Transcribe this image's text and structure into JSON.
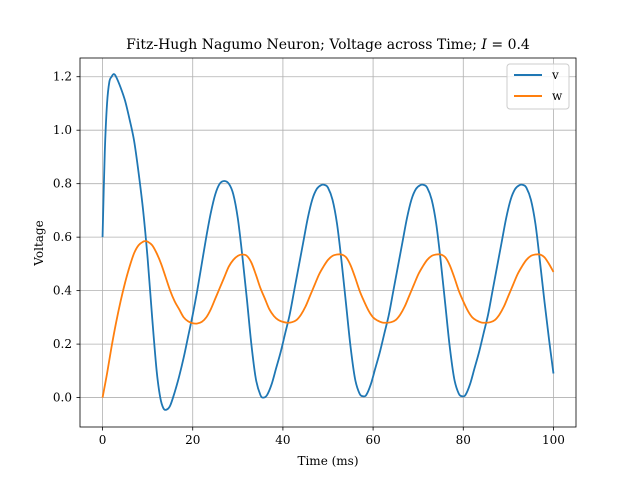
{
  "chart_data": {
    "type": "line",
    "title_prefix": "Fitz-Hugh Nagumo Neuron; Voltage across Time; ",
    "title_italic": "I",
    "title_suffix": " = 0.4",
    "xlabel": "Time (ms)",
    "ylabel": "Voltage",
    "xlim": [
      -5,
      105
    ],
    "ylim": [
      -0.11,
      1.27
    ],
    "xticks": [
      0,
      20,
      40,
      60,
      80,
      100
    ],
    "xtick_labels": [
      "0",
      "20",
      "40",
      "60",
      "80",
      "100"
    ],
    "yticks": [
      0.0,
      0.2,
      0.4,
      0.6,
      0.8,
      1.0,
      1.2
    ],
    "ytick_labels": [
      "0.0",
      "0.2",
      "0.4",
      "0.6",
      "0.8",
      "1.0",
      "1.2"
    ],
    "grid": true,
    "legend_position": "top-right",
    "series": [
      {
        "name": "v",
        "color": "#1f77b4",
        "points": [
          [
            0.0,
            0.6
          ],
          [
            0.5,
            0.92
          ],
          [
            1.0,
            1.1
          ],
          [
            1.5,
            1.18
          ],
          [
            2.0,
            1.2
          ],
          [
            2.5,
            1.21
          ],
          [
            3.0,
            1.2
          ],
          [
            4.0,
            1.16
          ],
          [
            5.0,
            1.11
          ],
          [
            6.0,
            1.04
          ],
          [
            7.0,
            0.96
          ],
          [
            8.0,
            0.84
          ],
          [
            9.0,
            0.7
          ],
          [
            10.0,
            0.52
          ],
          [
            11.0,
            0.3
          ],
          [
            12.0,
            0.1
          ],
          [
            12.8,
            0.0
          ],
          [
            13.5,
            -0.04
          ],
          [
            14.2,
            -0.045
          ],
          [
            15.0,
            -0.03
          ],
          [
            16.0,
            0.02
          ],
          [
            17.0,
            0.08
          ],
          [
            18.0,
            0.15
          ],
          [
            19.0,
            0.23
          ],
          [
            20.0,
            0.31
          ],
          [
            21.0,
            0.4
          ],
          [
            22.0,
            0.5
          ],
          [
            23.0,
            0.6
          ],
          [
            24.0,
            0.69
          ],
          [
            25.0,
            0.76
          ],
          [
            26.0,
            0.8
          ],
          [
            27.0,
            0.81
          ],
          [
            28.0,
            0.8
          ],
          [
            29.0,
            0.76
          ],
          [
            30.0,
            0.67
          ],
          [
            31.0,
            0.53
          ],
          [
            32.0,
            0.37
          ],
          [
            33.0,
            0.2
          ],
          [
            34.0,
            0.07
          ],
          [
            35.0,
            0.01
          ],
          [
            35.7,
            0.0
          ],
          [
            36.5,
            0.01
          ],
          [
            37.5,
            0.05
          ],
          [
            38.5,
            0.11
          ],
          [
            39.5,
            0.17
          ],
          [
            40.5,
            0.24
          ],
          [
            41.5,
            0.31
          ],
          [
            42.5,
            0.4
          ],
          [
            43.5,
            0.49
          ],
          [
            44.5,
            0.58
          ],
          [
            45.5,
            0.67
          ],
          [
            46.5,
            0.74
          ],
          [
            47.5,
            0.78
          ],
          [
            48.5,
            0.795
          ],
          [
            49.3,
            0.795
          ],
          [
            50.0,
            0.785
          ],
          [
            51.0,
            0.74
          ],
          [
            52.0,
            0.65
          ],
          [
            53.0,
            0.51
          ],
          [
            54.0,
            0.35
          ],
          [
            55.0,
            0.19
          ],
          [
            56.0,
            0.07
          ],
          [
            57.0,
            0.015
          ],
          [
            57.8,
            0.005
          ],
          [
            58.5,
            0.01
          ],
          [
            59.5,
            0.05
          ],
          [
            60.5,
            0.11
          ],
          [
            61.5,
            0.17
          ],
          [
            62.5,
            0.24
          ],
          [
            63.5,
            0.31
          ],
          [
            64.5,
            0.4
          ],
          [
            65.5,
            0.49
          ],
          [
            66.5,
            0.58
          ],
          [
            67.5,
            0.67
          ],
          [
            68.5,
            0.74
          ],
          [
            69.5,
            0.78
          ],
          [
            70.5,
            0.795
          ],
          [
            71.3,
            0.795
          ],
          [
            72.0,
            0.785
          ],
          [
            73.0,
            0.74
          ],
          [
            74.0,
            0.65
          ],
          [
            75.0,
            0.51
          ],
          [
            76.0,
            0.35
          ],
          [
            77.0,
            0.19
          ],
          [
            78.0,
            0.07
          ],
          [
            79.0,
            0.015
          ],
          [
            79.8,
            0.005
          ],
          [
            80.5,
            0.01
          ],
          [
            81.5,
            0.05
          ],
          [
            82.5,
            0.11
          ],
          [
            83.5,
            0.17
          ],
          [
            84.5,
            0.24
          ],
          [
            85.5,
            0.31
          ],
          [
            86.5,
            0.4
          ],
          [
            87.5,
            0.49
          ],
          [
            88.5,
            0.58
          ],
          [
            89.5,
            0.67
          ],
          [
            90.5,
            0.74
          ],
          [
            91.5,
            0.78
          ],
          [
            92.5,
            0.795
          ],
          [
            93.3,
            0.795
          ],
          [
            94.0,
            0.785
          ],
          [
            95.0,
            0.74
          ],
          [
            96.0,
            0.65
          ],
          [
            97.0,
            0.51
          ],
          [
            98.0,
            0.36
          ],
          [
            99.0,
            0.22
          ],
          [
            100.0,
            0.09
          ]
        ]
      },
      {
        "name": "w",
        "color": "#ff7f0e",
        "points": [
          [
            0.0,
            0.0
          ],
          [
            1.0,
            0.09
          ],
          [
            2.0,
            0.19
          ],
          [
            3.0,
            0.28
          ],
          [
            4.0,
            0.36
          ],
          [
            5.0,
            0.43
          ],
          [
            6.0,
            0.49
          ],
          [
            7.0,
            0.54
          ],
          [
            8.0,
            0.57
          ],
          [
            9.0,
            0.583
          ],
          [
            9.5,
            0.585
          ],
          [
            10.0,
            0.583
          ],
          [
            11.0,
            0.57
          ],
          [
            12.0,
            0.54
          ],
          [
            13.0,
            0.5
          ],
          [
            14.0,
            0.45
          ],
          [
            15.0,
            0.4
          ],
          [
            16.0,
            0.36
          ],
          [
            17.0,
            0.33
          ],
          [
            18.0,
            0.3
          ],
          [
            19.0,
            0.285
          ],
          [
            20.0,
            0.278
          ],
          [
            21.0,
            0.277
          ],
          [
            22.0,
            0.283
          ],
          [
            23.0,
            0.3
          ],
          [
            24.0,
            0.33
          ],
          [
            25.0,
            0.37
          ],
          [
            26.0,
            0.41
          ],
          [
            27.0,
            0.45
          ],
          [
            28.0,
            0.49
          ],
          [
            29.0,
            0.515
          ],
          [
            30.0,
            0.53
          ],
          [
            31.0,
            0.535
          ],
          [
            32.0,
            0.53
          ],
          [
            33.0,
            0.505
          ],
          [
            34.0,
            0.46
          ],
          [
            35.0,
            0.41
          ],
          [
            36.0,
            0.37
          ],
          [
            37.0,
            0.33
          ],
          [
            38.0,
            0.305
          ],
          [
            39.0,
            0.29
          ],
          [
            40.0,
            0.283
          ],
          [
            41.0,
            0.28
          ],
          [
            42.0,
            0.282
          ],
          [
            43.0,
            0.29
          ],
          [
            44.0,
            0.31
          ],
          [
            45.0,
            0.34
          ],
          [
            46.0,
            0.38
          ],
          [
            47.0,
            0.42
          ],
          [
            48.0,
            0.46
          ],
          [
            49.0,
            0.49
          ],
          [
            50.0,
            0.515
          ],
          [
            51.0,
            0.53
          ],
          [
            52.0,
            0.535
          ],
          [
            53.0,
            0.535
          ],
          [
            54.0,
            0.525
          ],
          [
            55.0,
            0.495
          ],
          [
            56.0,
            0.45
          ],
          [
            57.0,
            0.4
          ],
          [
            58.0,
            0.36
          ],
          [
            59.0,
            0.325
          ],
          [
            60.0,
            0.3
          ],
          [
            61.0,
            0.288
          ],
          [
            62.0,
            0.281
          ],
          [
            63.0,
            0.28
          ],
          [
            64.0,
            0.282
          ],
          [
            65.0,
            0.29
          ],
          [
            66.0,
            0.31
          ],
          [
            67.0,
            0.34
          ],
          [
            68.0,
            0.38
          ],
          [
            69.0,
            0.42
          ],
          [
            70.0,
            0.46
          ],
          [
            71.0,
            0.49
          ],
          [
            72.0,
            0.515
          ],
          [
            73.0,
            0.53
          ],
          [
            74.0,
            0.535
          ],
          [
            75.0,
            0.535
          ],
          [
            76.0,
            0.525
          ],
          [
            77.0,
            0.495
          ],
          [
            78.0,
            0.45
          ],
          [
            79.0,
            0.4
          ],
          [
            80.0,
            0.36
          ],
          [
            81.0,
            0.325
          ],
          [
            82.0,
            0.3
          ],
          [
            83.0,
            0.288
          ],
          [
            84.0,
            0.281
          ],
          [
            85.0,
            0.28
          ],
          [
            86.0,
            0.282
          ],
          [
            87.0,
            0.29
          ],
          [
            88.0,
            0.31
          ],
          [
            89.0,
            0.34
          ],
          [
            90.0,
            0.38
          ],
          [
            91.0,
            0.42
          ],
          [
            92.0,
            0.46
          ],
          [
            93.0,
            0.49
          ],
          [
            94.0,
            0.515
          ],
          [
            95.0,
            0.53
          ],
          [
            96.0,
            0.535
          ],
          [
            97.0,
            0.535
          ],
          [
            98.0,
            0.525
          ],
          [
            99.0,
            0.5
          ],
          [
            100.0,
            0.47
          ]
        ]
      }
    ]
  }
}
